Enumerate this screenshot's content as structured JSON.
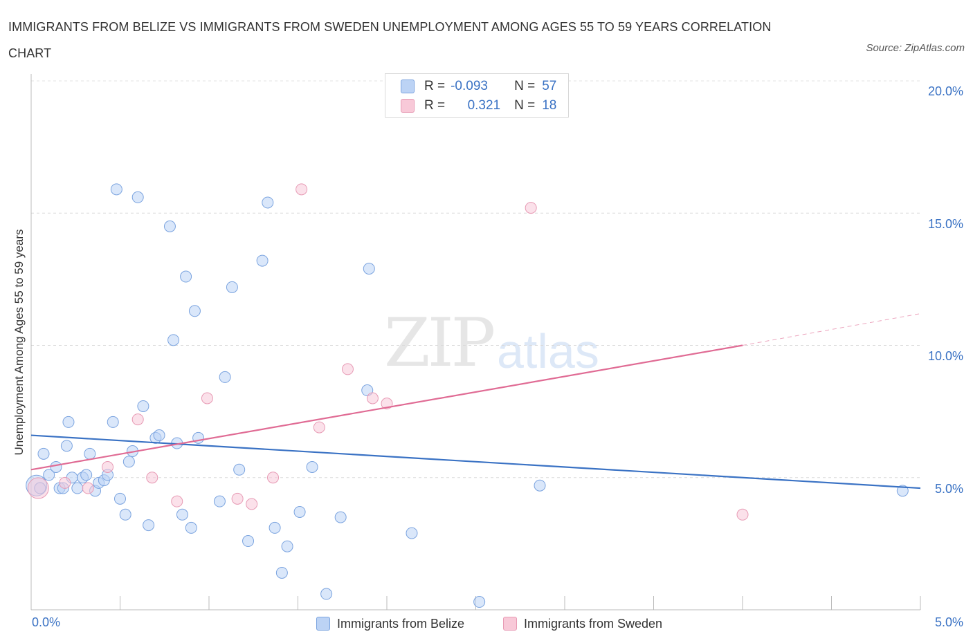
{
  "title": "IMMIGRANTS FROM BELIZE VS IMMIGRANTS FROM SWEDEN UNEMPLOYMENT AMONG AGES 55 TO 59 YEARS CORRELATION CHART",
  "source": "Source: ZipAtlas.com",
  "watermark": {
    "zip": "ZIP",
    "atlas": "atlas"
  },
  "stats": {
    "blue": {
      "r_label": "R =",
      "r_value": "-0.093",
      "n_label": "N =",
      "n_value": "57"
    },
    "pink": {
      "r_label": "R =",
      "r_value": "0.321",
      "n_label": "N =",
      "n_value": "18"
    }
  },
  "colors": {
    "blue": "#3a72c4",
    "blue_fill": "#bcd3f5",
    "pink": "#e06b94",
    "pink_fill": "#f8c9d8"
  },
  "chart_data": {
    "type": "scatter",
    "title": "IMMIGRANTS FROM BELIZE VS IMMIGRANTS FROM SWEDEN UNEMPLOYMENT AMONG AGES 55 TO 59 YEARS CORRELATION CHART",
    "xlabel": "",
    "ylabel": "Unemployment Among Ages 55 to 59 years",
    "xlim": [
      0,
      5
    ],
    "ylim": [
      0,
      20
    ],
    "x_tick_labels": [
      "0.0%",
      "5.0%"
    ],
    "y_ticks": [
      5,
      10,
      15,
      20
    ],
    "y_tick_labels": [
      "5.0%",
      "10.0%",
      "15.0%",
      "20.0%"
    ],
    "legend": [
      "Immigrants from Belize",
      "Immigrants from Sweden"
    ],
    "series": [
      {
        "name": "Immigrants from Belize",
        "color": "#3a72c4",
        "trend": {
          "x": [
            0,
            5
          ],
          "y": [
            6.6,
            4.6
          ]
        },
        "points": [
          {
            "x": 0.03,
            "y": 4.7,
            "big": true
          },
          {
            "x": 0.07,
            "y": 5.9
          },
          {
            "x": 0.1,
            "y": 5.1
          },
          {
            "x": 0.14,
            "y": 5.4
          },
          {
            "x": 0.16,
            "y": 4.6
          },
          {
            "x": 0.2,
            "y": 6.2
          },
          {
            "x": 0.21,
            "y": 7.1
          },
          {
            "x": 0.23,
            "y": 5.0
          },
          {
            "x": 0.26,
            "y": 4.6
          },
          {
            "x": 0.29,
            "y": 5.0
          },
          {
            "x": 0.31,
            "y": 5.1
          },
          {
            "x": 0.33,
            "y": 5.9
          },
          {
            "x": 0.36,
            "y": 4.5
          },
          {
            "x": 0.38,
            "y": 4.8
          },
          {
            "x": 0.41,
            "y": 4.9
          },
          {
            "x": 0.43,
            "y": 5.1
          },
          {
            "x": 0.46,
            "y": 7.1
          },
          {
            "x": 0.48,
            "y": 15.9
          },
          {
            "x": 0.5,
            "y": 4.2
          },
          {
            "x": 0.53,
            "y": 3.6
          },
          {
            "x": 0.55,
            "y": 5.6
          },
          {
            "x": 0.57,
            "y": 6.0
          },
          {
            "x": 0.6,
            "y": 15.6
          },
          {
            "x": 0.63,
            "y": 7.7
          },
          {
            "x": 0.66,
            "y": 3.2
          },
          {
            "x": 0.7,
            "y": 6.5
          },
          {
            "x": 0.72,
            "y": 6.6
          },
          {
            "x": 0.78,
            "y": 14.5
          },
          {
            "x": 0.8,
            "y": 10.2
          },
          {
            "x": 0.82,
            "y": 6.3
          },
          {
            "x": 0.85,
            "y": 3.6
          },
          {
            "x": 0.87,
            "y": 12.6
          },
          {
            "x": 0.9,
            "y": 3.1
          },
          {
            "x": 0.92,
            "y": 11.3
          },
          {
            "x": 0.94,
            "y": 6.5
          },
          {
            "x": 1.06,
            "y": 4.1
          },
          {
            "x": 1.09,
            "y": 8.8
          },
          {
            "x": 1.13,
            "y": 12.2
          },
          {
            "x": 1.17,
            "y": 5.3
          },
          {
            "x": 1.22,
            "y": 2.6
          },
          {
            "x": 1.3,
            "y": 13.2
          },
          {
            "x": 1.33,
            "y": 15.4
          },
          {
            "x": 1.37,
            "y": 3.1
          },
          {
            "x": 1.41,
            "y": 1.4
          },
          {
            "x": 1.44,
            "y": 2.4
          },
          {
            "x": 1.51,
            "y": 3.7
          },
          {
            "x": 1.58,
            "y": 5.4
          },
          {
            "x": 1.66,
            "y": 0.6
          },
          {
            "x": 1.74,
            "y": 3.5
          },
          {
            "x": 1.9,
            "y": 12.9
          },
          {
            "x": 1.89,
            "y": 8.3
          },
          {
            "x": 2.14,
            "y": 2.9
          },
          {
            "x": 2.52,
            "y": 0.3
          },
          {
            "x": 2.86,
            "y": 4.7
          },
          {
            "x": 4.9,
            "y": 4.5
          },
          {
            "x": 0.05,
            "y": 4.6
          },
          {
            "x": 0.18,
            "y": 4.6
          }
        ]
      },
      {
        "name": "Immigrants from Sweden",
        "color": "#e06b94",
        "trend": {
          "x": [
            0,
            4.0
          ],
          "y": [
            5.3,
            10.0
          ]
        },
        "trend_ext": {
          "x": [
            4.0,
            5.0
          ],
          "y": [
            10.0,
            11.2
          ]
        },
        "points": [
          {
            "x": 0.04,
            "y": 4.6,
            "big": true
          },
          {
            "x": 0.19,
            "y": 4.8
          },
          {
            "x": 0.32,
            "y": 4.6
          },
          {
            "x": 0.43,
            "y": 5.4
          },
          {
            "x": 0.6,
            "y": 7.2
          },
          {
            "x": 0.68,
            "y": 5.0
          },
          {
            "x": 0.82,
            "y": 4.1
          },
          {
            "x": 0.99,
            "y": 8.0
          },
          {
            "x": 1.16,
            "y": 4.2
          },
          {
            "x": 1.24,
            "y": 4.0
          },
          {
            "x": 1.36,
            "y": 5.0
          },
          {
            "x": 1.52,
            "y": 15.9
          },
          {
            "x": 1.62,
            "y": 6.9
          },
          {
            "x": 1.78,
            "y": 9.1
          },
          {
            "x": 1.92,
            "y": 8.0
          },
          {
            "x": 2.0,
            "y": 7.8
          },
          {
            "x": 2.81,
            "y": 15.2
          },
          {
            "x": 4.0,
            "y": 3.6
          }
        ]
      }
    ]
  }
}
